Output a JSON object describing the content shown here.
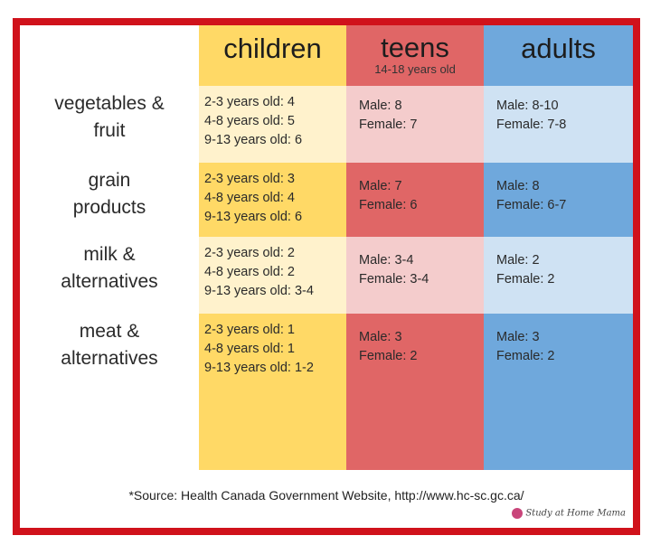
{
  "columns": [
    {
      "title": "children",
      "subtitle": ""
    },
    {
      "title": "teens",
      "subtitle": "14-18 years old"
    },
    {
      "title": "adults",
      "subtitle": ""
    }
  ],
  "colors": {
    "border": "#d0121b",
    "children_strong": "#ffd966",
    "children_light": "#fff2cc",
    "teens_strong": "#e06666",
    "teens_light": "#f4cccc",
    "adults_strong": "#6fa8dc",
    "adults_light": "#cfe2f3"
  },
  "rows": [
    {
      "label": [
        "vegetables &",
        "fruit"
      ],
      "children": [
        "2-3 years old: 4",
        "4-8 years old: 5",
        "9-13 years old: 6"
      ],
      "teens": [
        "Male: 8",
        "Female: 7"
      ],
      "adults": [
        "Male: 8-10",
        "Female: 7-8"
      ]
    },
    {
      "label": [
        "grain",
        "products"
      ],
      "children": [
        "2-3 years old: 3",
        "4-8 years old: 4",
        "9-13 years old: 6"
      ],
      "teens": [
        "Male: 7",
        "Female: 6"
      ],
      "adults": [
        "Male: 8",
        "Female: 6-7"
      ]
    },
    {
      "label": [
        "milk &",
        "alternatives"
      ],
      "children": [
        "2-3 years old: 2",
        "4-8 years old: 2",
        "9-13 years old: 3-4"
      ],
      "teens": [
        "Male: 3-4",
        "Female: 3-4"
      ],
      "adults": [
        "Male: 2",
        "Female: 2"
      ]
    },
    {
      "label": [
        "meat &",
        "alternatives"
      ],
      "children": [
        "2-3 years old: 1",
        "4-8 years old: 1",
        "9-13 years old: 1-2"
      ],
      "teens": [
        "Male: 3",
        "Female: 2"
      ],
      "adults": [
        "Male: 3",
        "Female: 2"
      ]
    }
  ],
  "source": "*Source: Health Canada Government Website, http://www.hc-sc.gc.ca/",
  "logo_text": "Study at Home Mama"
}
